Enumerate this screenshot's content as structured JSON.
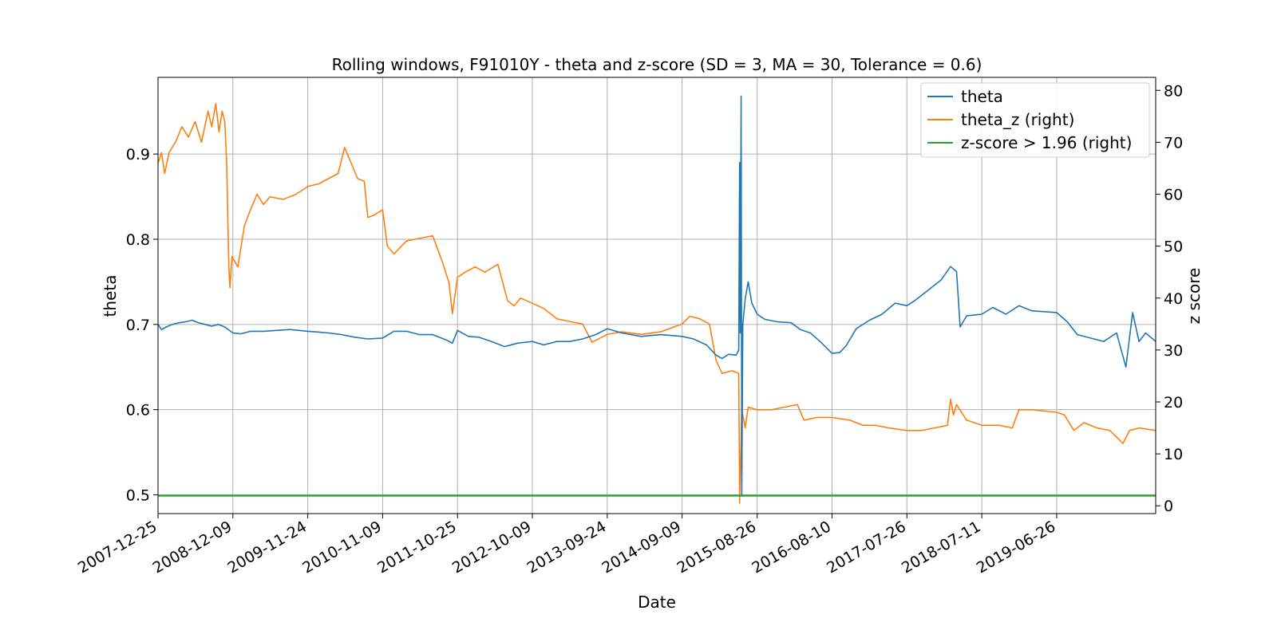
{
  "chart_data": {
    "type": "line",
    "title": "Rolling windows, F91010Y - theta and z-score (SD = 3, MA = 30, Tolerance  = 0.6)",
    "xlabel": "Date",
    "ylabel": "theta",
    "y2label": "z score",
    "xlim": [
      "2007-12-25",
      "2020-10-01"
    ],
    "ylim": [
      0.478,
      0.99
    ],
    "y2lim": [
      -1.5,
      82.5
    ],
    "x_ticks": [
      "2007-12-25",
      "2008-12-09",
      "2009-11-24",
      "2010-11-09",
      "2011-10-25",
      "2012-10-09",
      "2013-09-24",
      "2014-09-09",
      "2015-08-26",
      "2016-08-10",
      "2017-07-26",
      "2018-07-11",
      "2019-06-26"
    ],
    "y_ticks": [
      "0.5",
      "0.6",
      "0.7",
      "0.8",
      "0.9"
    ],
    "y2_ticks": [
      "0",
      "10",
      "20",
      "30",
      "40",
      "50",
      "60",
      "70",
      "80"
    ],
    "grid": true,
    "legend_position": "top-right",
    "series": [
      {
        "name": "theta",
        "axis": "left",
        "color": "#1f77b4",
        "points": [
          [
            "2007-12-25",
            0.7
          ],
          [
            "2008-01-10",
            0.694
          ],
          [
            "2008-02-01",
            0.697
          ],
          [
            "2008-03-01",
            0.7
          ],
          [
            "2008-04-01",
            0.702
          ],
          [
            "2008-05-01",
            0.703
          ],
          [
            "2008-06-01",
            0.705
          ],
          [
            "2008-07-01",
            0.702
          ],
          [
            "2008-08-01",
            0.7
          ],
          [
            "2008-09-01",
            0.698
          ],
          [
            "2008-10-01",
            0.7
          ],
          [
            "2008-11-01",
            0.697
          ],
          [
            "2008-12-09",
            0.69
          ],
          [
            "2009-01-15",
            0.689
          ],
          [
            "2009-03-01",
            0.692
          ],
          [
            "2009-05-01",
            0.692
          ],
          [
            "2009-07-01",
            0.693
          ],
          [
            "2009-09-01",
            0.694
          ],
          [
            "2009-11-24",
            0.692
          ],
          [
            "2010-01-15",
            0.691
          ],
          [
            "2010-03-01",
            0.69
          ],
          [
            "2010-05-01",
            0.688
          ],
          [
            "2010-07-01",
            0.685
          ],
          [
            "2010-09-01",
            0.683
          ],
          [
            "2010-11-09",
            0.684
          ],
          [
            "2011-01-01",
            0.692
          ],
          [
            "2011-03-01",
            0.692
          ],
          [
            "2011-05-01",
            0.688
          ],
          [
            "2011-07-01",
            0.688
          ],
          [
            "2011-09-01",
            0.682
          ],
          [
            "2011-10-01",
            0.678
          ],
          [
            "2011-10-25",
            0.693
          ],
          [
            "2011-12-15",
            0.686
          ],
          [
            "2012-02-01",
            0.685
          ],
          [
            "2012-04-01",
            0.68
          ],
          [
            "2012-06-01",
            0.674
          ],
          [
            "2012-08-01",
            0.678
          ],
          [
            "2012-10-09",
            0.68
          ],
          [
            "2012-12-01",
            0.676
          ],
          [
            "2013-02-01",
            0.68
          ],
          [
            "2013-04-01",
            0.68
          ],
          [
            "2013-06-01",
            0.683
          ],
          [
            "2013-08-01",
            0.688
          ],
          [
            "2013-09-24",
            0.695
          ],
          [
            "2013-12-01",
            0.69
          ],
          [
            "2014-03-01",
            0.686
          ],
          [
            "2014-06-01",
            0.688
          ],
          [
            "2014-09-09",
            0.686
          ],
          [
            "2014-11-01",
            0.683
          ],
          [
            "2015-01-01",
            0.676
          ],
          [
            "2015-02-15",
            0.664
          ],
          [
            "2015-03-15",
            0.66
          ],
          [
            "2015-04-15",
            0.665
          ],
          [
            "2015-05-20",
            0.664
          ],
          [
            "2015-06-01",
            0.67
          ],
          [
            "2015-06-05",
            0.89
          ],
          [
            "2015-06-08",
            0.69
          ],
          [
            "2015-06-12",
            0.968
          ],
          [
            "2015-06-15",
            0.5
          ],
          [
            "2015-06-20",
            0.7
          ],
          [
            "2015-07-01",
            0.73
          ],
          [
            "2015-07-15",
            0.75
          ],
          [
            "2015-08-01",
            0.725
          ],
          [
            "2015-08-26",
            0.712
          ],
          [
            "2015-10-01",
            0.706
          ],
          [
            "2015-12-01",
            0.703
          ],
          [
            "2016-02-01",
            0.702
          ],
          [
            "2016-03-15",
            0.694
          ],
          [
            "2016-05-01",
            0.69
          ],
          [
            "2016-06-15",
            0.68
          ],
          [
            "2016-08-10",
            0.666
          ],
          [
            "2016-09-15",
            0.667
          ],
          [
            "2016-10-15",
            0.675
          ],
          [
            "2016-12-01",
            0.695
          ],
          [
            "2017-02-01",
            0.705
          ],
          [
            "2017-04-01",
            0.712
          ],
          [
            "2017-06-01",
            0.725
          ],
          [
            "2017-07-26",
            0.722
          ],
          [
            "2017-09-01",
            0.728
          ],
          [
            "2017-11-01",
            0.74
          ],
          [
            "2018-01-01",
            0.752
          ],
          [
            "2018-02-15",
            0.768
          ],
          [
            "2018-03-15",
            0.762
          ],
          [
            "2018-04-01",
            0.697
          ],
          [
            "2018-05-01",
            0.71
          ],
          [
            "2018-07-11",
            0.712
          ],
          [
            "2018-09-01",
            0.72
          ],
          [
            "2018-11-01",
            0.712
          ],
          [
            "2019-01-01",
            0.722
          ],
          [
            "2019-03-01",
            0.716
          ],
          [
            "2019-06-26",
            0.714
          ],
          [
            "2019-08-15",
            0.703
          ],
          [
            "2019-10-01",
            0.688
          ],
          [
            "2019-12-01",
            0.684
          ],
          [
            "2020-02-01",
            0.68
          ],
          [
            "2020-04-01",
            0.69
          ],
          [
            "2020-05-15",
            0.65
          ],
          [
            "2020-06-15",
            0.714
          ],
          [
            "2020-07-15",
            0.68
          ],
          [
            "2020-08-15",
            0.69
          ],
          [
            "2020-10-01",
            0.68
          ]
        ]
      },
      {
        "name": "theta_z (right)",
        "axis": "right",
        "color": "#ff7f0e",
        "points": [
          [
            "2007-12-25",
            66.0
          ],
          [
            "2008-01-10",
            68.0
          ],
          [
            "2008-01-25",
            64.0
          ],
          [
            "2008-02-15",
            68.0
          ],
          [
            "2008-03-15",
            70.0
          ],
          [
            "2008-04-15",
            73.0
          ],
          [
            "2008-05-15",
            71.0
          ],
          [
            "2008-06-15",
            74.0
          ],
          [
            "2008-07-15",
            70.0
          ],
          [
            "2008-08-15",
            76.0
          ],
          [
            "2008-09-01",
            73.0
          ],
          [
            "2008-09-20",
            77.5
          ],
          [
            "2008-10-05",
            72.0
          ],
          [
            "2008-10-20",
            76.0
          ],
          [
            "2008-11-01",
            74.0
          ],
          [
            "2008-11-10",
            66.0
          ],
          [
            "2008-11-20",
            46.0
          ],
          [
            "2008-11-25",
            42.0
          ],
          [
            "2008-12-05",
            48.0
          ],
          [
            "2009-01-01",
            46.0
          ],
          [
            "2009-02-01",
            54.0
          ],
          [
            "2009-03-01",
            57.0
          ],
          [
            "2009-04-01",
            60.0
          ],
          [
            "2009-05-01",
            58.0
          ],
          [
            "2009-06-01",
            59.5
          ],
          [
            "2009-08-01",
            59.0
          ],
          [
            "2009-10-01",
            60.0
          ],
          [
            "2009-11-24",
            61.5
          ],
          [
            "2010-01-15",
            62.0
          ],
          [
            "2010-03-01",
            63.0
          ],
          [
            "2010-04-15",
            64.0
          ],
          [
            "2010-05-15",
            69.0
          ],
          [
            "2010-06-15",
            66.0
          ],
          [
            "2010-07-15",
            63.0
          ],
          [
            "2010-08-15",
            62.5
          ],
          [
            "2010-09-01",
            55.5
          ],
          [
            "2010-10-01",
            56.0
          ],
          [
            "2010-11-09",
            57.0
          ],
          [
            "2010-12-01",
            50.0
          ],
          [
            "2011-01-01",
            48.5
          ],
          [
            "2011-03-01",
            51.0
          ],
          [
            "2011-05-01",
            51.5
          ],
          [
            "2011-07-01",
            52.0
          ],
          [
            "2011-08-15",
            47.0
          ],
          [
            "2011-09-15",
            43.0
          ],
          [
            "2011-10-01",
            37.0
          ],
          [
            "2011-10-25",
            44.0
          ],
          [
            "2011-12-01",
            45.0
          ],
          [
            "2012-01-15",
            46.0
          ],
          [
            "2012-03-01",
            45.0
          ],
          [
            "2012-05-01",
            46.5
          ],
          [
            "2012-06-15",
            39.5
          ],
          [
            "2012-07-15",
            38.5
          ],
          [
            "2012-08-15",
            40.0
          ],
          [
            "2012-10-09",
            39.0
          ],
          [
            "2012-12-01",
            38.0
          ],
          [
            "2013-02-01",
            36.0
          ],
          [
            "2013-04-01",
            35.5
          ],
          [
            "2013-06-01",
            35.0
          ],
          [
            "2013-07-15",
            31.5
          ],
          [
            "2013-09-24",
            33.0
          ],
          [
            "2013-12-01",
            33.5
          ],
          [
            "2014-03-01",
            33.0
          ],
          [
            "2014-06-01",
            33.5
          ],
          [
            "2014-09-09",
            35.0
          ],
          [
            "2014-10-15",
            36.5
          ],
          [
            "2014-12-01",
            36.0
          ],
          [
            "2015-01-15",
            35.0
          ],
          [
            "2015-02-15",
            28.0
          ],
          [
            "2015-03-15",
            25.5
          ],
          [
            "2015-05-01",
            26.0
          ],
          [
            "2015-06-01",
            25.5
          ],
          [
            "2015-06-05",
            0.5
          ],
          [
            "2015-06-15",
            18.5
          ],
          [
            "2015-07-01",
            15.0
          ],
          [
            "2015-07-15",
            19.0
          ],
          [
            "2015-08-26",
            18.5
          ],
          [
            "2015-11-01",
            18.5
          ],
          [
            "2016-01-01",
            19.0
          ],
          [
            "2016-03-01",
            19.5
          ],
          [
            "2016-04-01",
            16.5
          ],
          [
            "2016-06-01",
            17.0
          ],
          [
            "2016-08-10",
            17.0
          ],
          [
            "2016-11-01",
            16.5
          ],
          [
            "2017-01-01",
            15.5
          ],
          [
            "2017-03-01",
            15.5
          ],
          [
            "2017-05-01",
            15.0
          ],
          [
            "2017-07-26",
            14.5
          ],
          [
            "2017-10-01",
            14.5
          ],
          [
            "2017-12-01",
            15.0
          ],
          [
            "2018-02-01",
            15.5
          ],
          [
            "2018-02-15",
            20.5
          ],
          [
            "2018-03-01",
            17.5
          ],
          [
            "2018-03-15",
            19.5
          ],
          [
            "2018-05-01",
            16.5
          ],
          [
            "2018-07-11",
            15.5
          ],
          [
            "2018-10-01",
            15.5
          ],
          [
            "2018-12-01",
            15.0
          ],
          [
            "2019-01-01",
            18.5
          ],
          [
            "2019-03-01",
            18.5
          ],
          [
            "2019-06-26",
            18.0
          ],
          [
            "2019-08-01",
            17.5
          ],
          [
            "2019-09-15",
            14.5
          ],
          [
            "2019-11-01",
            16.0
          ],
          [
            "2020-01-01",
            15.0
          ],
          [
            "2020-03-01",
            14.5
          ],
          [
            "2020-05-01",
            12.0
          ],
          [
            "2020-06-01",
            14.5
          ],
          [
            "2020-07-15",
            15.0
          ],
          [
            "2020-10-01",
            14.5
          ]
        ]
      },
      {
        "name": "z-score > 1.96 (right)",
        "axis": "right",
        "color": "#2ca02c",
        "points": [
          [
            "2007-12-25",
            1.96
          ],
          [
            "2020-10-01",
            1.96
          ]
        ]
      }
    ]
  }
}
